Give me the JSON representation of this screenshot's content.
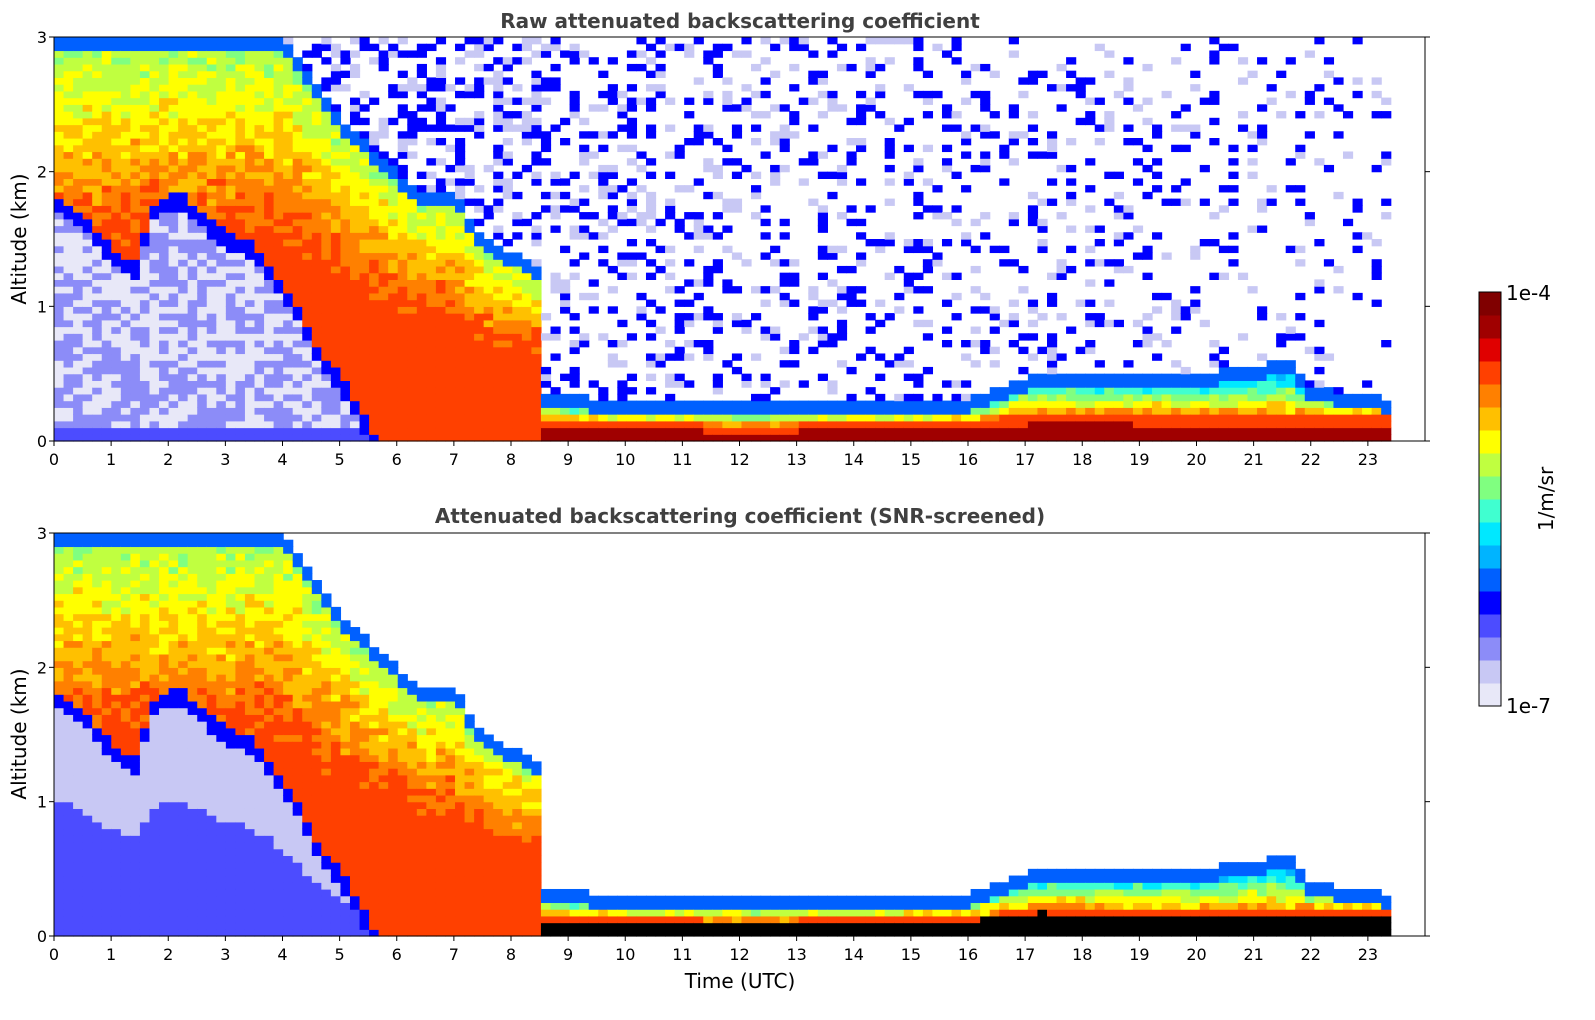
{
  "colors": {
    "colormap": [
      "#e8e8f8",
      "#c8c8f4",
      "#8c8cf8",
      "#4c4cff",
      "#0000ff",
      "#0060ff",
      "#00b4ff",
      "#00e8ff",
      "#40ffd0",
      "#80ff80",
      "#c0ff40",
      "#ffff00",
      "#ffc000",
      "#ff8000",
      "#ff4000",
      "#e00000",
      "#a00000",
      "#800000"
    ],
    "background": "#ffffff",
    "black_layer": "#000000"
  },
  "colorbar": {
    "min_label": "1e-7",
    "max_label": "1e-4",
    "unit_label": "1/m/sr",
    "scale": "log"
  },
  "chart_data": [
    {
      "type": "heatmap",
      "title": "Raw attenuated backscattering coefficient",
      "xlabel": "",
      "ylabel": "Altitude (km)",
      "xlim": [
        0,
        24
      ],
      "ylim": [
        0,
        3
      ],
      "x_ticks": [
        "0",
        "1",
        "2",
        "3",
        "4",
        "5",
        "6",
        "7",
        "8",
        "9",
        "10",
        "11",
        "12",
        "13",
        "14",
        "15",
        "16",
        "17",
        "18",
        "19",
        "20",
        "21",
        "22",
        "23"
      ],
      "y_ticks": [
        "0",
        "1",
        "2",
        "3"
      ],
      "data_end_hour": 23.4,
      "screened": false,
      "boundary_layer_top_km": [
        [
          0,
          1.85
        ],
        [
          0.5,
          1.7
        ],
        [
          1,
          1.45
        ],
        [
          1.4,
          1.32
        ],
        [
          1.8,
          1.8
        ],
        [
          2.2,
          1.85
        ],
        [
          2.6,
          1.7
        ],
        [
          3,
          1.55
        ],
        [
          3.4,
          1.5
        ],
        [
          3.8,
          1.3
        ],
        [
          4.2,
          1.05
        ],
        [
          4.6,
          0.7
        ],
        [
          5.0,
          0.5
        ],
        [
          5.3,
          0.3
        ],
        [
          5.6,
          0.05
        ]
      ],
      "aerosol_top_km": [
        [
          0,
          3
        ],
        [
          4,
          3
        ],
        [
          4.5,
          2.7
        ],
        [
          5,
          2.4
        ],
        [
          5.5,
          2.2
        ],
        [
          6,
          2.0
        ],
        [
          6.5,
          1.85
        ],
        [
          7,
          1.85
        ],
        [
          7.5,
          1.5
        ],
        [
          8.0,
          1.4
        ],
        [
          8.5,
          1.3
        ],
        [
          8.6,
          0.35
        ],
        [
          10,
          0.3
        ],
        [
          12,
          0.28
        ],
        [
          14,
          0.3
        ],
        [
          16,
          0.32
        ],
        [
          17.2,
          0.5
        ],
        [
          18,
          0.5
        ],
        [
          20,
          0.5
        ],
        [
          21.6,
          0.6
        ],
        [
          22,
          0.4
        ],
        [
          23.4,
          0.32
        ]
      ],
      "surface_layer_top_km": [
        [
          8.6,
          0.15
        ],
        [
          12,
          0.12
        ],
        [
          16,
          0.14
        ],
        [
          17.2,
          0.22
        ],
        [
          20,
          0.2
        ],
        [
          22,
          0.2
        ],
        [
          23.4,
          0.2
        ]
      ]
    },
    {
      "type": "heatmap",
      "title": "Attenuated backscattering coefficient (SNR-screened)",
      "xlabel": "Time (UTC)",
      "ylabel": "Altitude (km)",
      "xlim": [
        0,
        24
      ],
      "ylim": [
        0,
        3
      ],
      "x_ticks": [
        "0",
        "1",
        "2",
        "3",
        "4",
        "5",
        "6",
        "7",
        "8",
        "9",
        "10",
        "11",
        "12",
        "13",
        "14",
        "15",
        "16",
        "17",
        "18",
        "19",
        "20",
        "21",
        "22",
        "23"
      ],
      "y_ticks": [
        "0",
        "1",
        "2",
        "3"
      ],
      "data_end_hour": 23.4,
      "screened": true,
      "boundary_layer_top_km": [
        [
          0,
          1.85
        ],
        [
          0.5,
          1.7
        ],
        [
          1,
          1.45
        ],
        [
          1.4,
          1.32
        ],
        [
          1.8,
          1.8
        ],
        [
          2.2,
          1.85
        ],
        [
          2.6,
          1.7
        ],
        [
          3,
          1.55
        ],
        [
          3.4,
          1.5
        ],
        [
          3.8,
          1.3
        ],
        [
          4.2,
          1.05
        ],
        [
          4.6,
          0.7
        ],
        [
          5.0,
          0.5
        ],
        [
          5.3,
          0.3
        ],
        [
          5.6,
          0.05
        ]
      ],
      "aerosol_top_km": [
        [
          0,
          3
        ],
        [
          4,
          3
        ],
        [
          4.5,
          2.7
        ],
        [
          5,
          2.4
        ],
        [
          5.5,
          2.2
        ],
        [
          6,
          2.0
        ],
        [
          6.5,
          1.85
        ],
        [
          7,
          1.85
        ],
        [
          7.5,
          1.5
        ],
        [
          8.0,
          1.4
        ],
        [
          8.5,
          1.3
        ],
        [
          8.6,
          0.35
        ],
        [
          10,
          0.3
        ],
        [
          12,
          0.28
        ],
        [
          14,
          0.3
        ],
        [
          16,
          0.32
        ],
        [
          17.2,
          0.5
        ],
        [
          18,
          0.5
        ],
        [
          20,
          0.5
        ],
        [
          21.6,
          0.6
        ],
        [
          22,
          0.4
        ],
        [
          23.4,
          0.32
        ]
      ],
      "surface_layer_top_km": [
        [
          8.6,
          0.15
        ],
        [
          12,
          0.12
        ],
        [
          16,
          0.14
        ],
        [
          17.2,
          0.22
        ],
        [
          20,
          0.2
        ],
        [
          22,
          0.2
        ],
        [
          23.4,
          0.2
        ]
      ]
    }
  ]
}
